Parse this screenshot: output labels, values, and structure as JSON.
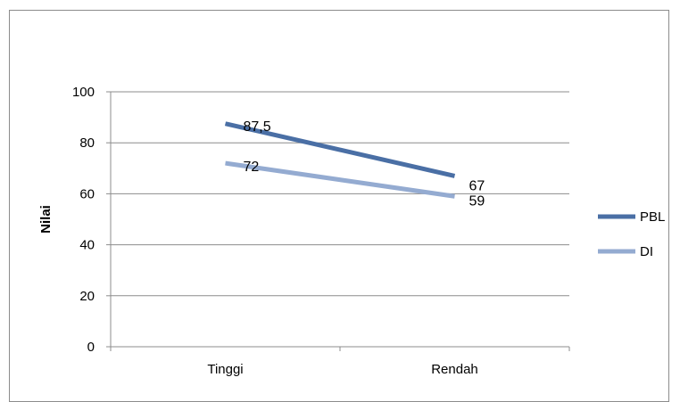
{
  "chart_data": {
    "type": "line",
    "title": "",
    "xlabel": "",
    "ylabel": "Nilai",
    "categories": [
      "Tinggi",
      "Rendah"
    ],
    "ylim": [
      0,
      100
    ],
    "yticks": [
      0,
      20,
      40,
      60,
      80,
      100
    ],
    "grid": true,
    "legend_position": "right",
    "series": [
      {
        "name": "PBL",
        "values": [
          87.5,
          67
        ],
        "labels": [
          "87,5",
          "67"
        ],
        "color": "#4a6fa5"
      },
      {
        "name": "DI",
        "values": [
          72,
          59
        ],
        "labels": [
          "72",
          "59"
        ],
        "color": "#94abd1"
      }
    ]
  }
}
